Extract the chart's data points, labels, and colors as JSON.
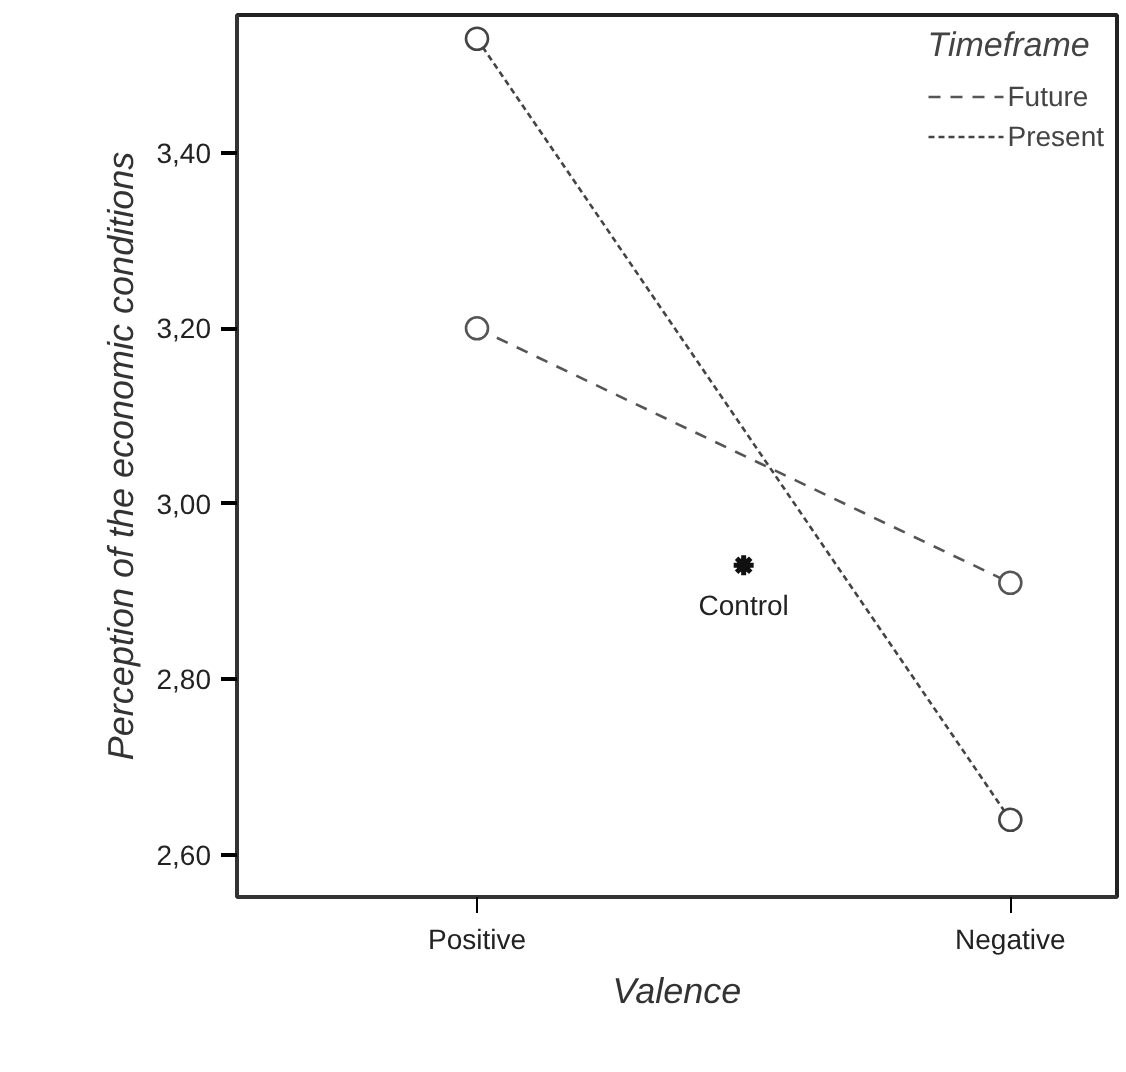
{
  "chart_data": {
    "type": "line",
    "xlabel": "Valence",
    "ylabel": "Perception of the economic conditions",
    "legend_title": "Timeframe",
    "legend": "top right",
    "grid": false,
    "marker": "circle",
    "categories": [
      "Positive",
      "Negative"
    ],
    "ylim": [
      2.552,
      3.557
    ],
    "yticks": [
      {
        "value": 2.6,
        "label": "2,60"
      },
      {
        "value": 2.8,
        "label": "2,80"
      },
      {
        "value": 3.0,
        "label": "3,00"
      },
      {
        "value": 3.2,
        "label": "3,20"
      },
      {
        "value": 3.4,
        "label": "3,40"
      }
    ],
    "series": [
      {
        "name": "Future",
        "color": "#555555",
        "line_style": "dashed",
        "values": [
          3.2,
          2.91
        ]
      },
      {
        "name": "Present",
        "color": "#444444",
        "line_style": "dotted",
        "values": [
          3.53,
          2.64
        ]
      }
    ],
    "annotations": [
      {
        "text": "Control",
        "y": 2.93
      }
    ]
  }
}
